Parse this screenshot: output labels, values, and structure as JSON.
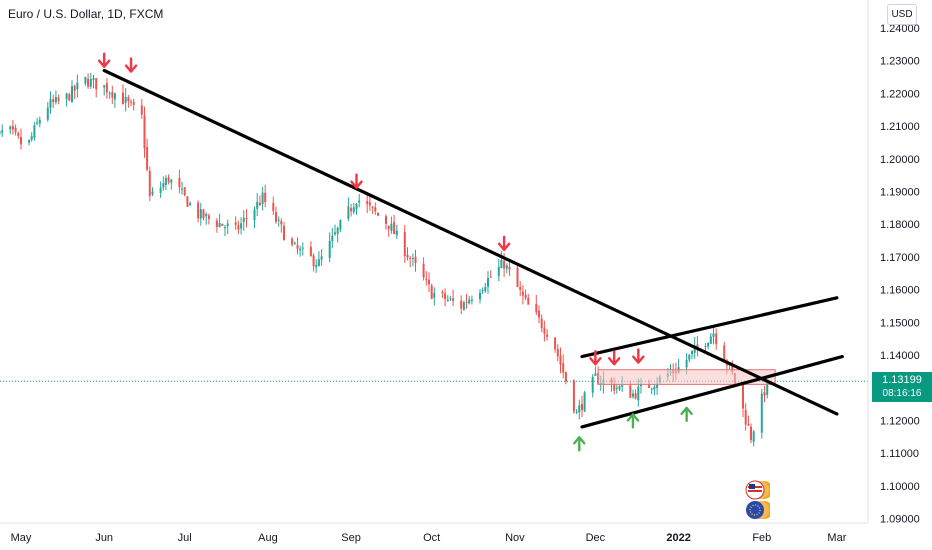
{
  "header": {
    "title": "Euro / U.S. Dollar, 1D, FXCM",
    "currency": "USD"
  },
  "price_tag": {
    "price": "1.13199",
    "countdown": "08:16:16"
  },
  "colors": {
    "up": "#26a69a",
    "down": "#ef5350",
    "trendline": "#000000",
    "zone": "#f7c3c2",
    "zone_border": "#e57373",
    "arrow_down": "#f23645",
    "arrow_up": "#4caf50",
    "price_tag": "#089981"
  },
  "chart_data": {
    "type": "candlestick",
    "y_axis": {
      "ticks": [
        "1.24000",
        "1.23000",
        "1.22000",
        "1.21000",
        "1.20000",
        "1.19000",
        "1.18000",
        "1.17000",
        "1.16000",
        "1.15000",
        "1.14000",
        "1.13000",
        "1.12000",
        "1.11000",
        "1.10000",
        "1.09000"
      ],
      "range": [
        1.0862,
        1.245
      ]
    },
    "x_axis": {
      "ticks": [
        "May",
        "Jun",
        "Jul",
        "Aug",
        "Sep",
        "Oct",
        "Nov",
        "Dec",
        "2022",
        "Feb",
        "Mar"
      ],
      "tick_dates": [
        "2021-05-01",
        "2021-06-01",
        "2021-07-01",
        "2021-08-01",
        "2021-09-01",
        "2021-10-01",
        "2021-11-01",
        "2021-12-01",
        "2022-01-01",
        "2022-02-01",
        "2022-03-01"
      ],
      "range": [
        "2021-05-01",
        "2022-03-31"
      ]
    },
    "close_path": [
      {
        "date": "2021-04-19",
        "price": 1.205
      },
      {
        "date": "2021-04-26",
        "price": 1.209
      },
      {
        "date": "2021-05-03",
        "price": 1.203
      },
      {
        "date": "2021-05-10",
        "price": 1.216
      },
      {
        "date": "2021-05-17",
        "price": 1.218
      },
      {
        "date": "2021-05-25",
        "price": 1.224
      },
      {
        "date": "2021-06-01",
        "price": 1.222
      },
      {
        "date": "2021-06-07",
        "price": 1.219
      },
      {
        "date": "2021-06-15",
        "price": 1.2125
      },
      {
        "date": "2021-06-18",
        "price": 1.188
      },
      {
        "date": "2021-06-25",
        "price": 1.194
      },
      {
        "date": "2021-07-06",
        "price": 1.183
      },
      {
        "date": "2021-07-20",
        "price": 1.178
      },
      {
        "date": "2021-07-30",
        "price": 1.188
      },
      {
        "date": "2021-08-10",
        "price": 1.173
      },
      {
        "date": "2021-08-20",
        "price": 1.168
      },
      {
        "date": "2021-09-03",
        "price": 1.188
      },
      {
        "date": "2021-09-15",
        "price": 1.18
      },
      {
        "date": "2021-10-01",
        "price": 1.159
      },
      {
        "date": "2021-10-12",
        "price": 1.155
      },
      {
        "date": "2021-10-28",
        "price": 1.168
      },
      {
        "date": "2021-11-05",
        "price": 1.156
      },
      {
        "date": "2021-11-15",
        "price": 1.145
      },
      {
        "date": "2021-11-24",
        "price": 1.122
      },
      {
        "date": "2021-12-01",
        "price": 1.133
      },
      {
        "date": "2021-12-15",
        "price": 1.128
      },
      {
        "date": "2022-01-01",
        "price": 1.136
      },
      {
        "date": "2022-01-14",
        "price": 1.147
      },
      {
        "date": "2022-01-21",
        "price": 1.134
      },
      {
        "date": "2022-01-28",
        "price": 1.115
      },
      {
        "date": "2022-02-03",
        "price": 1.1319
      }
    ],
    "annotations": {
      "trendlines": [
        {
          "from": {
            "date": "2021-06-01",
            "price": 1.227
          },
          "to": {
            "date": "2022-03-01",
            "price": 1.122
          }
        },
        {
          "from": {
            "date": "2021-11-26",
            "price": 1.1395
          },
          "to": {
            "date": "2022-03-01",
            "price": 1.1575
          }
        },
        {
          "from": {
            "date": "2021-11-26",
            "price": 1.118
          },
          "to": {
            "date": "2022-03-03",
            "price": 1.1395
          }
        }
      ],
      "zone": {
        "start": "2021-12-02",
        "end": "2022-02-06",
        "high": 1.1355,
        "low": 1.131
      },
      "down_arrows": [
        {
          "date": "2021-06-01",
          "price": 1.23
        },
        {
          "date": "2021-06-11",
          "price": 1.2285
        },
        {
          "date": "2021-09-03",
          "price": 1.193
        },
        {
          "date": "2021-10-28",
          "price": 1.174
        },
        {
          "date": "2021-12-01",
          "price": 1.139
        },
        {
          "date": "2021-12-08",
          "price": 1.139
        },
        {
          "date": "2021-12-17",
          "price": 1.1395
        }
      ],
      "up_arrows": [
        {
          "date": "2021-11-25",
          "price": 1.113
        },
        {
          "date": "2021-12-15",
          "price": 1.12
        },
        {
          "date": "2022-01-04",
          "price": 1.122
        }
      ]
    },
    "last_price": 1.13199
  }
}
